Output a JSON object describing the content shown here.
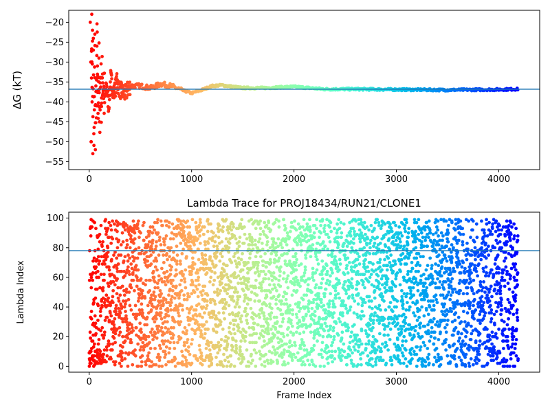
{
  "chart_data": [
    {
      "type": "scatter",
      "title": "",
      "xlabel": "",
      "ylabel": "ΔG (kT)",
      "xlim": [
        -200,
        4400
      ],
      "ylim": [
        -57,
        -17
      ],
      "xticks": [
        0,
        1000,
        2000,
        3000,
        4000
      ],
      "yticks": [
        -55,
        -50,
        -45,
        -40,
        -35,
        -30,
        -25,
        -20
      ],
      "hline": {
        "y": -36.8,
        "color": "#1f77b4"
      },
      "colormap": "rainbow (red at frame 0 → blue/violet at last frame)",
      "x_range": [
        0,
        4190
      ],
      "series": [
        {
          "description": "running ΔG estimate per frame",
          "points": [
            {
              "x": 10,
              "y": -20
            },
            {
              "x": 15,
              "y": -30
            },
            {
              "x": 18,
              "y": -50
            },
            {
              "x": 22,
              "y": -34
            },
            {
              "x": 25,
              "y": -18
            },
            {
              "x": 28,
              "y": -40
            },
            {
              "x": 32,
              "y": -22
            },
            {
              "x": 35,
              "y": -53
            },
            {
              "x": 40,
              "y": -27
            },
            {
              "x": 45,
              "y": -48
            },
            {
              "x": 50,
              "y": -42
            },
            {
              "x": 55,
              "y": -23
            },
            {
              "x": 60,
              "y": -52
            },
            {
              "x": 65,
              "y": -36
            },
            {
              "x": 70,
              "y": -44
            },
            {
              "x": 75,
              "y": -26
            },
            {
              "x": 80,
              "y": -31
            },
            {
              "x": 85,
              "y": -41
            },
            {
              "x": 90,
              "y": -37
            },
            {
              "x": 95,
              "y": -29
            },
            {
              "x": 100,
              "y": -45
            },
            {
              "x": 110,
              "y": -34
            },
            {
              "x": 120,
              "y": -39
            },
            {
              "x": 130,
              "y": -33
            },
            {
              "x": 150,
              "y": -40
            },
            {
              "x": 170,
              "y": -36
            },
            {
              "x": 190,
              "y": -41
            },
            {
              "x": 210,
              "y": -34
            },
            {
              "x": 240,
              "y": -38
            },
            {
              "x": 270,
              "y": -35
            },
            {
              "x": 300,
              "y": -37
            },
            {
              "x": 350,
              "y": -38
            },
            {
              "x": 400,
              "y": -36
            },
            {
              "x": 500,
              "y": -36
            },
            {
              "x": 600,
              "y": -36.5
            },
            {
              "x": 700,
              "y": -35.5
            },
            {
              "x": 800,
              "y": -36
            },
            {
              "x": 900,
              "y": -37
            },
            {
              "x": 1000,
              "y": -37.8
            },
            {
              "x": 1100,
              "y": -37
            },
            {
              "x": 1200,
              "y": -36
            },
            {
              "x": 1300,
              "y": -35.8
            },
            {
              "x": 1400,
              "y": -36.2
            },
            {
              "x": 1500,
              "y": -36.5
            },
            {
              "x": 1700,
              "y": -36.5
            },
            {
              "x": 2000,
              "y": -36.2
            },
            {
              "x": 2300,
              "y": -36.8
            },
            {
              "x": 2600,
              "y": -36.8
            },
            {
              "x": 3000,
              "y": -36.9
            },
            {
              "x": 3500,
              "y": -37
            },
            {
              "x": 4000,
              "y": -36.9
            },
            {
              "x": 4190,
              "y": -36.8
            }
          ]
        }
      ]
    },
    {
      "type": "scatter",
      "title": "Lambda Trace for PROJ18434/RUN21/CLONE1",
      "xlabel": "Frame Index",
      "ylabel": "Lambda Index",
      "xlim": [
        -200,
        4400
      ],
      "ylim": [
        -4,
        104
      ],
      "xticks": [
        0,
        1000,
        2000,
        3000,
        4000
      ],
      "yticks": [
        0,
        20,
        40,
        60,
        80,
        100
      ],
      "hline": {
        "y": 78,
        "color": "#1f77b4"
      },
      "colormap": "rainbow (red at frame 0 → violet at last frame)",
      "x_range": [
        0,
        4190
      ],
      "y_range": [
        0,
        99
      ],
      "n_points": 4190,
      "description": "lambda index visited at each frame, spread roughly uniformly over 0–99"
    }
  ]
}
